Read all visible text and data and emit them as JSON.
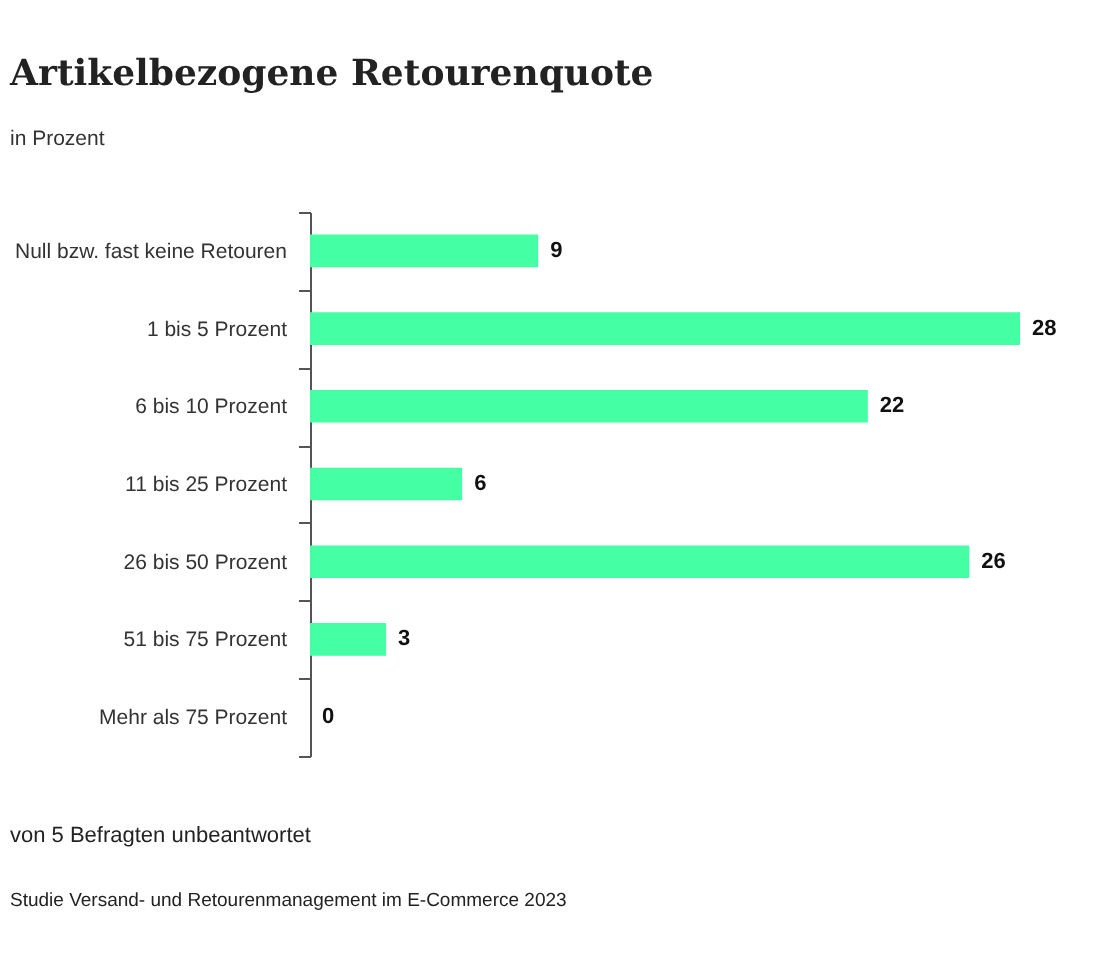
{
  "chart_data": {
    "type": "bar",
    "orientation": "horizontal",
    "title": "Artikelbezogene Retourenquote",
    "subtitle": "in Prozent",
    "categories": [
      "Null bzw. fast keine Retouren",
      "1 bis 5 Prozent",
      "6 bis 10 Prozent",
      "11 bis 25 Prozent",
      "26 bis 50 Prozent",
      "51 bis 75 Prozent",
      "Mehr als 75 Prozent"
    ],
    "values": [
      9,
      28,
      22,
      6,
      26,
      3,
      0
    ],
    "color": "#44ffa4",
    "data_labels": true,
    "annotations": [
      "von 5 Befragten unbeantwortet",
      "Studie Versand- und Retourenmanagement im E-Commerce 2023"
    ]
  }
}
